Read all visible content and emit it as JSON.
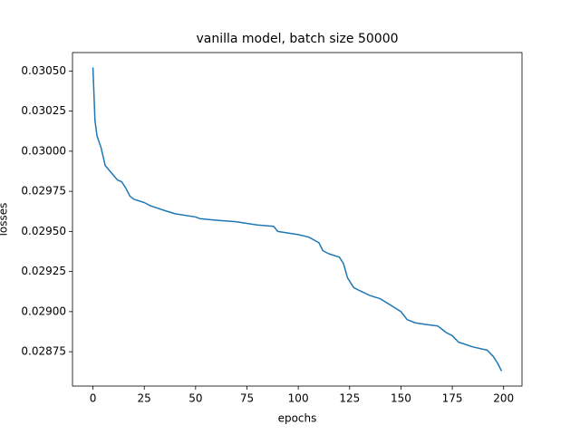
{
  "chart_data": {
    "type": "line",
    "title": "vanilla model, batch size 50000",
    "x_label": "epochs",
    "y_label": "losses",
    "grid": false,
    "x": [
      0,
      1,
      2,
      4,
      6,
      8,
      10,
      12,
      14,
      16,
      18,
      20,
      25,
      28,
      35,
      40,
      50,
      52,
      60,
      70,
      80,
      88,
      90,
      95,
      100,
      105,
      110,
      112,
      115,
      120,
      122,
      124,
      127,
      130,
      135,
      140,
      145,
      150,
      153,
      157,
      162,
      168,
      172,
      175,
      178,
      185,
      192,
      195,
      197,
      199
    ],
    "series": [
      {
        "name": "losses",
        "color": "#1f77b4",
        "values": [
          0.030522,
          0.03019,
          0.030095,
          0.03002,
          0.02991,
          0.02988,
          0.02985,
          0.02982,
          0.02981,
          0.02977,
          0.02972,
          0.0297,
          0.02968,
          0.02966,
          0.02963,
          0.02961,
          0.02959,
          0.02958,
          0.02957,
          0.02956,
          0.02954,
          0.029532,
          0.0295,
          0.02949,
          0.02948,
          0.029465,
          0.02943,
          0.02938,
          0.02936,
          0.02934,
          0.0293,
          0.02921,
          0.02915,
          0.02913,
          0.0291,
          0.02908,
          0.02904,
          0.029,
          0.02895,
          0.02893,
          0.02892,
          0.02891,
          0.02887,
          0.02885,
          0.02881,
          0.02878,
          0.02876,
          0.02872,
          0.02868,
          0.02863
        ]
      }
    ],
    "xlim": [
      -9.95,
      208.95
    ],
    "xticks": [
      0,
      25,
      50,
      75,
      100,
      125,
      150,
      175,
      200
    ],
    "ylim": [
      0.028536,
      0.030615
    ],
    "yticks": [
      0.02875,
      {
        "value": 0.029,
        "label": "0.02900"
      },
      0.02925,
      {
        "value": 0.0295,
        "label": "0.02950"
      },
      0.02975,
      {
        "value": 0.03,
        "label": "0.03000"
      },
      0.03025,
      {
        "value": 0.0305,
        "label": "0.03050"
      }
    ]
  }
}
